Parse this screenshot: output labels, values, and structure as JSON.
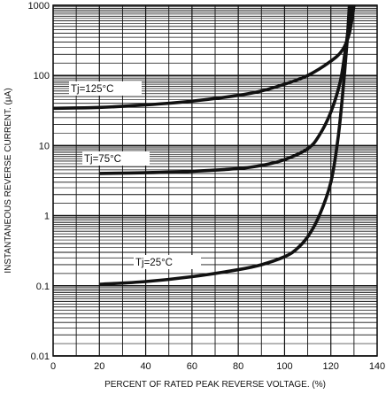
{
  "chart_data": {
    "type": "line",
    "xlabel": "PERCENT OF RATED PEAK REVERSE VOLTAGE. (%)",
    "ylabel": "INSTANTANEOUS REVERSE CURRENT. (µA)",
    "xlim": [
      0,
      140
    ],
    "ylim": [
      0.01,
      1000
    ],
    "y_scale": "log",
    "x_ticks": [
      "0",
      "20",
      "40",
      "60",
      "80",
      "100",
      "120",
      "140"
    ],
    "y_ticks": [
      "0.01",
      "0.1",
      "1",
      "10",
      "100",
      "1000"
    ],
    "grid": true,
    "series": [
      {
        "name": "Tj=125°C",
        "x": [
          0,
          20,
          40,
          60,
          80,
          90,
          100,
          110,
          120,
          125,
          128,
          130
        ],
        "y": [
          34,
          35,
          38,
          43,
          52,
          60,
          75,
          100,
          160,
          230,
          400,
          1000
        ]
      },
      {
        "name": "Tj=75°C",
        "x": [
          20,
          40,
          60,
          80,
          90,
          100,
          110,
          115,
          120,
          124,
          126,
          128,
          129
        ],
        "y": [
          4,
          4.1,
          4.3,
          4.7,
          5.2,
          6.3,
          9,
          14,
          30,
          80,
          200,
          600,
          1000
        ]
      },
      {
        "name": "Tj=25°C",
        "x": [
          20,
          40,
          60,
          80,
          90,
          100,
          105,
          110,
          115,
          120,
          123,
          125,
          127,
          128
        ],
        "y": [
          0.105,
          0.115,
          0.135,
          0.17,
          0.2,
          0.26,
          0.33,
          0.5,
          1.0,
          3.0,
          12,
          50,
          300,
          1000
        ]
      }
    ]
  }
}
